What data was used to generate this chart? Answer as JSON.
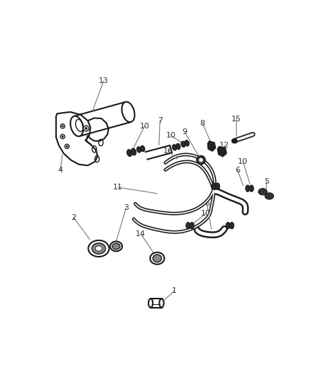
{
  "bg_color": "#ffffff",
  "line_color": "#1a1a1a",
  "label_color": "#333333",
  "fig_width": 4.38,
  "fig_height": 5.33,
  "dpi": 100
}
